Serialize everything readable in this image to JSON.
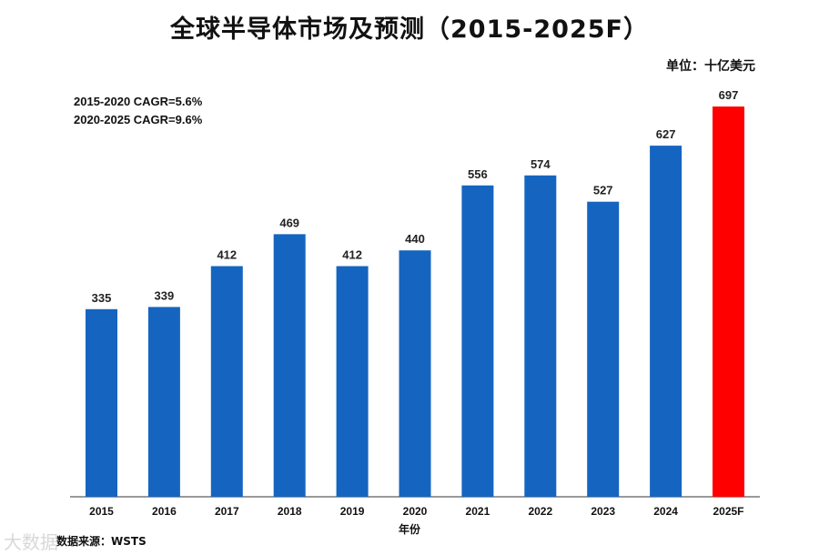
{
  "chart_data": {
    "type": "bar",
    "title": "全球半导体市场及预测（2015-2025F）",
    "unit": "单位：十亿美元",
    "annotations": [
      "2015-2020 CAGR=5.6%",
      "2020-2025 CAGR=9.6%"
    ],
    "xlabel": "年份",
    "ylabel": "",
    "categories": [
      "2015",
      "2016",
      "2017",
      "2018",
      "2019",
      "2020",
      "2021",
      "2022",
      "2023",
      "2024",
      "2025F"
    ],
    "values": [
      335,
      339,
      412,
      469,
      412,
      440,
      556,
      574,
      527,
      627,
      697
    ],
    "ylim": [
      0,
      760
    ],
    "grid": false,
    "colors": {
      "actual": "#1565C0",
      "forecast": "#FF0000",
      "axis": "#333333"
    }
  },
  "source": "数据来源：WSTS",
  "watermark": "大数据"
}
